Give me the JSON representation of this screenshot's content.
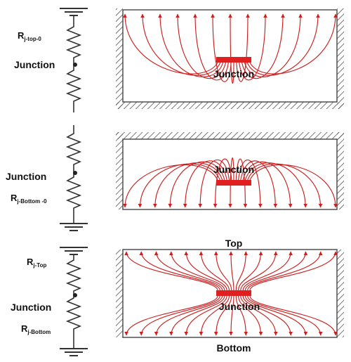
{
  "panels": [
    {
      "id": "top-grounded",
      "resistors": [
        {
          "label_main": "R",
          "label_sub": "j-top-0"
        }
      ],
      "node_label": "Junction",
      "junction_label": "Junction",
      "edge_label": ""
    },
    {
      "id": "bottom-grounded",
      "resistors": [
        {
          "label_main": "R",
          "label_sub": "j-Bottom -0"
        }
      ],
      "node_label": "Junction",
      "junction_label": "Junction",
      "edge_label": ""
    },
    {
      "id": "both-grounded",
      "resistors": [
        {
          "label_main": "R",
          "label_sub": "j-Top"
        },
        {
          "label_main": "R",
          "label_sub": "j-Bottom"
        }
      ],
      "node_label": "Junction",
      "junction_label": "Junction",
      "edge_labels": {
        "top": "Top",
        "bottom": "Bottom"
      }
    }
  ],
  "colors": {
    "field_line": "#cc1f1f",
    "junction": "#e02020",
    "resistor": "#333333",
    "hatch": "#555555"
  }
}
